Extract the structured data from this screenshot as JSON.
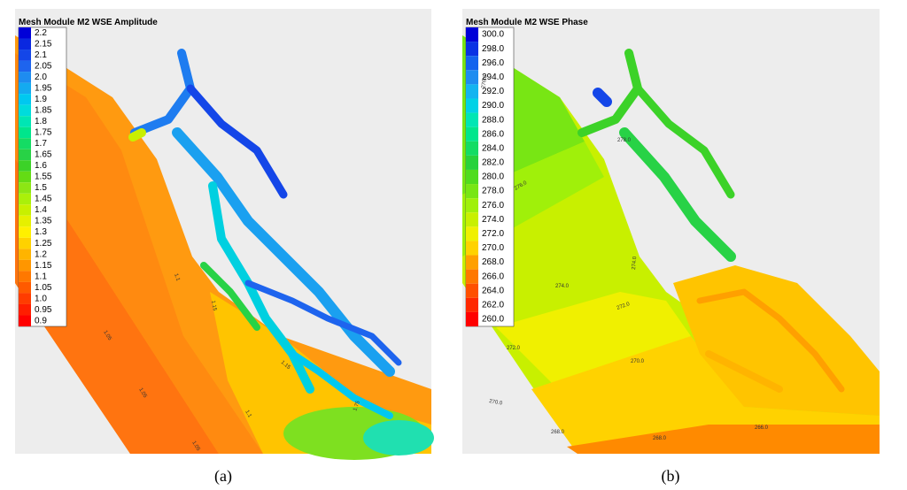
{
  "panels": [
    {
      "label": "(a)",
      "legend": {
        "title": "Mesh Module M2 WSE Amplitude",
        "entries": [
          {
            "label": "2.2",
            "color": "#0000d8"
          },
          {
            "label": "2.15",
            "color": "#0a28e0"
          },
          {
            "label": "2.1",
            "color": "#1446e8"
          },
          {
            "label": "2.05",
            "color": "#1e64ee"
          },
          {
            "label": "2.0",
            "color": "#1e8cf0"
          },
          {
            "label": "1.95",
            "color": "#14aaf0"
          },
          {
            "label": "1.9",
            "color": "#00c8f0"
          },
          {
            "label": "1.85",
            "color": "#00dcdc"
          },
          {
            "label": "1.8",
            "color": "#00e6b4"
          },
          {
            "label": "1.75",
            "color": "#00e68c"
          },
          {
            "label": "1.7",
            "color": "#14dc64"
          },
          {
            "label": "1.65",
            "color": "#28d246"
          },
          {
            "label": "1.6",
            "color": "#3cd228"
          },
          {
            "label": "1.55",
            "color": "#64dc14"
          },
          {
            "label": "1.5",
            "color": "#8ce614"
          },
          {
            "label": "1.45",
            "color": "#aaf00a"
          },
          {
            "label": "1.4",
            "color": "#c8f000"
          },
          {
            "label": "1.35",
            "color": "#e6f000"
          },
          {
            "label": "1.3",
            "color": "#fff000"
          },
          {
            "label": "1.25",
            "color": "#ffd200"
          },
          {
            "label": "1.2",
            "color": "#ffb400"
          },
          {
            "label": "1.15",
            "color": "#ff9600"
          },
          {
            "label": "1.1",
            "color": "#ff7800"
          },
          {
            "label": "1.05",
            "color": "#ff5a00"
          },
          {
            "label": "1.0",
            "color": "#ff3c00"
          },
          {
            "label": "0.95",
            "color": "#ff1e00"
          },
          {
            "label": "0.9",
            "color": "#ff0000"
          }
        ]
      },
      "contour_labels": [
        "1.05",
        "1.05",
        "1.05",
        "1.1",
        "1.1",
        "1.15",
        "1.15",
        "1.75"
      ]
    },
    {
      "label": "(b)",
      "legend": {
        "title": "Mesh Module M2 WSE Phase",
        "entries": [
          {
            "label": "300.0",
            "color": "#0000d8"
          },
          {
            "label": "298.0",
            "color": "#0a32e4"
          },
          {
            "label": "296.0",
            "color": "#1464ee"
          },
          {
            "label": "294.0",
            "color": "#1e8cf0"
          },
          {
            "label": "292.0",
            "color": "#14b4f0"
          },
          {
            "label": "290.0",
            "color": "#00d2e6"
          },
          {
            "label": "288.0",
            "color": "#00e6b4"
          },
          {
            "label": "286.0",
            "color": "#00e68c"
          },
          {
            "label": "284.0",
            "color": "#14dc64"
          },
          {
            "label": "282.0",
            "color": "#28d23c"
          },
          {
            "label": "280.0",
            "color": "#50dc1e"
          },
          {
            "label": "278.0",
            "color": "#78e614"
          },
          {
            "label": "276.0",
            "color": "#a0f00a"
          },
          {
            "label": "274.0",
            "color": "#c8f000"
          },
          {
            "label": "272.0",
            "color": "#f0f000"
          },
          {
            "label": "270.0",
            "color": "#ffd200"
          },
          {
            "label": "268.0",
            "color": "#ffa000"
          },
          {
            "label": "266.0",
            "color": "#ff7800"
          },
          {
            "label": "264.0",
            "color": "#ff5000"
          },
          {
            "label": "262.0",
            "color": "#ff2800"
          },
          {
            "label": "260.0",
            "color": "#ff0000"
          }
        ]
      },
      "contour_labels": [
        "276.0",
        "278.0",
        "276.0",
        "274.0",
        "274.0",
        "272.0",
        "272.0",
        "270.0",
        "270.0",
        "268.0",
        "268.0",
        "266.0"
      ]
    }
  ]
}
